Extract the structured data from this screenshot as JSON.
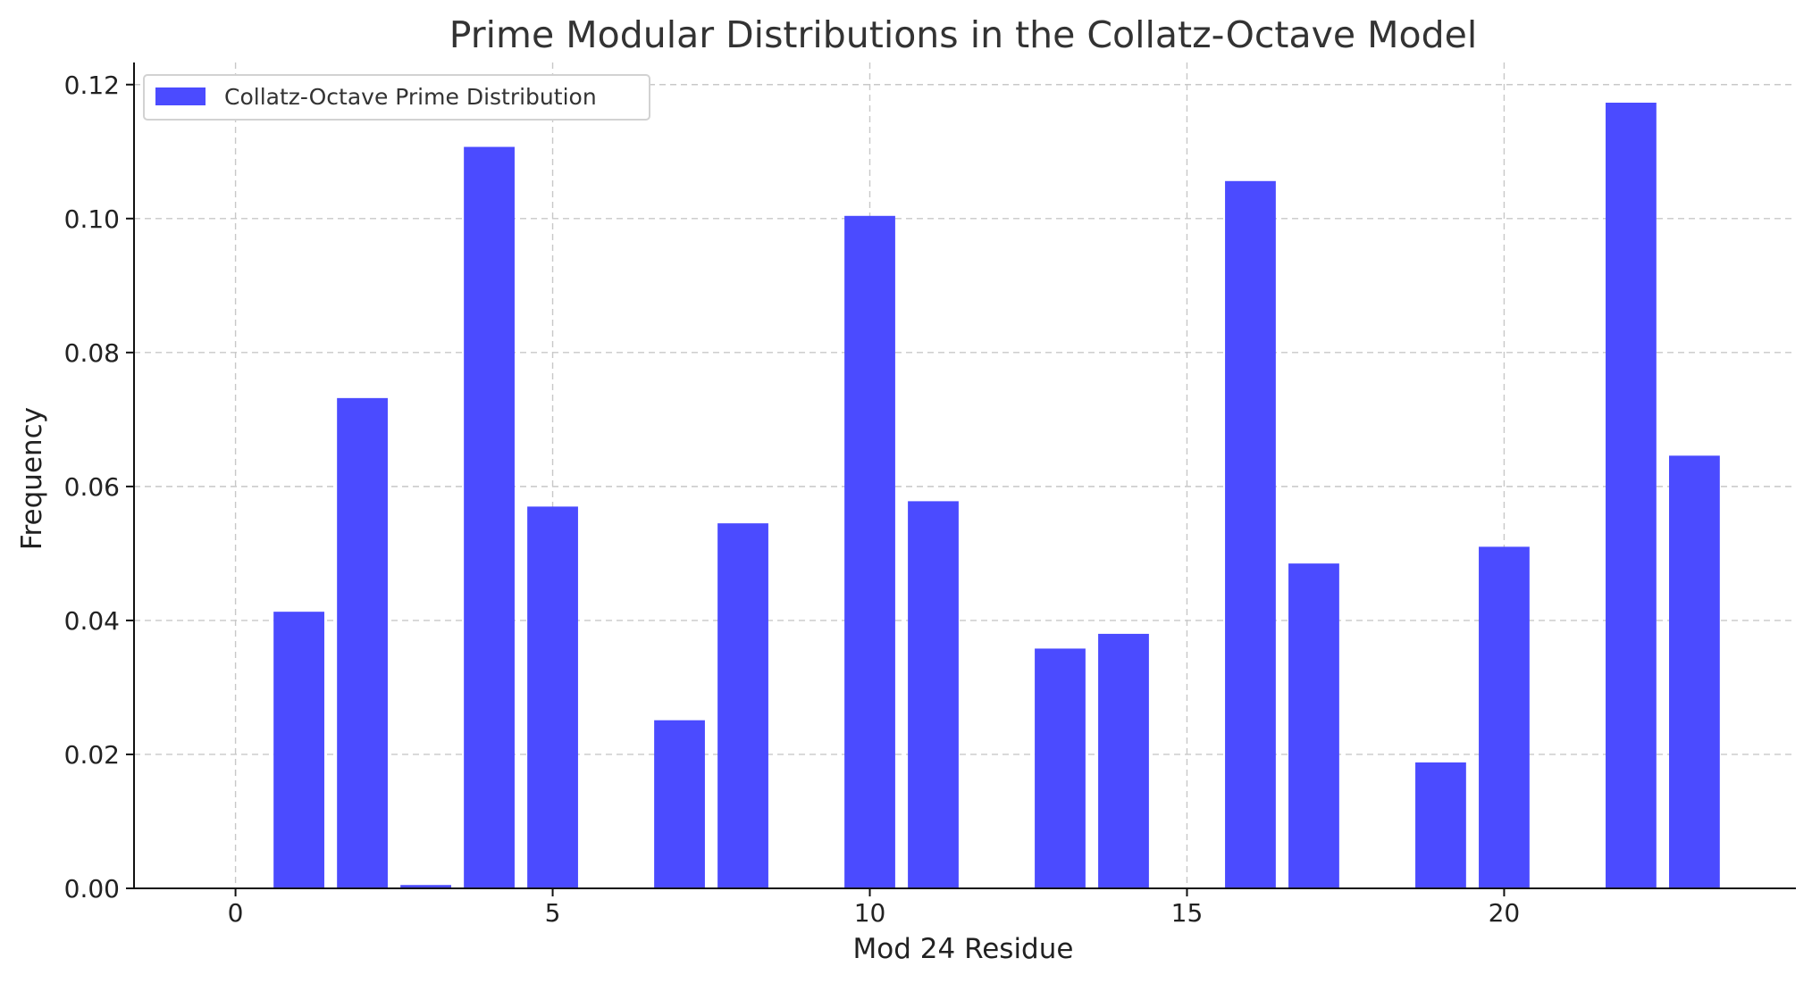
{
  "chart_data": {
    "type": "bar",
    "title": "Prime Modular Distributions in the Collatz-Octave Model",
    "xlabel": "Mod 24 Residue",
    "ylabel": "Frequency",
    "xlim": [
      -1.6,
      24.6
    ],
    "ylim": [
      0,
      0.1233
    ],
    "xticks": [
      0,
      5,
      10,
      15,
      20
    ],
    "yticks": [
      0,
      0.02,
      0.04,
      0.06,
      0.08,
      0.1,
      0.12
    ],
    "ytick_labels": [
      "0.00",
      "0.02",
      "0.04",
      "0.06",
      "0.08",
      "0.10",
      "0.12"
    ],
    "grid": true,
    "legend_position": "top-left",
    "color": "#4b4bff",
    "series": [
      {
        "name": "Collatz-Octave Prime Distribution",
        "x": [
          0,
          1,
          2,
          3,
          4,
          5,
          6,
          7,
          8,
          9,
          10,
          11,
          12,
          13,
          14,
          15,
          16,
          17,
          18,
          19,
          20,
          21,
          22,
          23
        ],
        "values": [
          0.0,
          0.0413,
          0.0732,
          0.0005,
          0.1107,
          0.057,
          0.0,
          0.0251,
          0.0545,
          0.0,
          0.1004,
          0.0578,
          0.0,
          0.0358,
          0.038,
          0.0,
          0.1056,
          0.0485,
          0.0,
          0.0188,
          0.051,
          0.0,
          0.1173,
          0.0646
        ]
      }
    ]
  }
}
